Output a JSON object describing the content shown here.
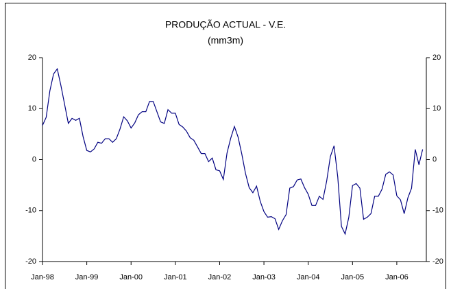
{
  "chart_data": {
    "type": "line",
    "title": "PRODUÇÃO ACTUAL - V.E.",
    "subtitle": "(mm3m)",
    "categories": [
      "Jan-98",
      null,
      null,
      null,
      null,
      null,
      null,
      null,
      null,
      null,
      null,
      null,
      "Jan-99",
      null,
      null,
      null,
      null,
      null,
      null,
      null,
      null,
      null,
      null,
      null,
      "Jan-00",
      null,
      null,
      null,
      null,
      null,
      null,
      null,
      null,
      null,
      null,
      null,
      "Jan-01",
      null,
      null,
      null,
      null,
      null,
      null,
      null,
      null,
      null,
      null,
      null,
      "Jan-02",
      null,
      null,
      null,
      null,
      null,
      null,
      null,
      null,
      null,
      null,
      null,
      "Jan-03",
      null,
      null,
      null,
      null,
      null,
      null,
      null,
      null,
      null,
      null,
      null,
      "Jan-04",
      null,
      null,
      null,
      null,
      null,
      null,
      null,
      null,
      null,
      null,
      null,
      "Jan-05",
      null,
      null,
      null,
      null,
      null,
      null,
      null,
      null,
      null,
      null,
      null,
      "Jan-06",
      null,
      null,
      null,
      null,
      null,
      null,
      null
    ],
    "series": [
      {
        "color": "#000080",
        "values": [
          6.7,
          8.3,
          13.5,
          16.8,
          17.8,
          14.5,
          10.8,
          7.1,
          8.1,
          7.7,
          8.1,
          4.5,
          1.8,
          1.5,
          2.1,
          3.4,
          3.2,
          4.1,
          4.1,
          3.4,
          4.1,
          6.0,
          8.4,
          7.6,
          6.2,
          7.2,
          8.8,
          9.4,
          9.4,
          11.4,
          11.4,
          9.4,
          7.4,
          7.1,
          9.8,
          9.1,
          9.1,
          6.9,
          6.4,
          5.6,
          4.3,
          3.8,
          2.5,
          1.2,
          1.2,
          -0.4,
          0.3,
          -2.0,
          -2.2,
          -3.9,
          1.3,
          4.2,
          6.5,
          4.4,
          1.1,
          -2.7,
          -5.5,
          -6.5,
          -5.2,
          -8.2,
          -10.2,
          -11.3,
          -11.2,
          -11.6,
          -13.7,
          -12.0,
          -10.8,
          -5.6,
          -5.3,
          -4.0,
          -3.8,
          -5.5,
          -6.8,
          -9.0,
          -9.0,
          -7.2,
          -7.8,
          -4.2,
          0.6,
          2.7,
          -3.4,
          -13.1,
          -14.6,
          -11.3,
          -5.1,
          -4.7,
          -5.6,
          -11.7,
          -11.3,
          -10.6,
          -7.2,
          -7.2,
          -5.8,
          -2.9,
          -2.4,
          -3.0,
          -7.1,
          -7.9,
          -10.6,
          -7.5,
          -5.6,
          2.0,
          -1.0,
          2.0
        ]
      }
    ],
    "ylim": [
      -20,
      20
    ],
    "yticks": [
      -20,
      -10,
      0,
      10,
      20
    ],
    "y2lim": [
      -20,
      20
    ],
    "y2ticks": [
      -20,
      -10,
      0,
      10,
      20
    ]
  }
}
